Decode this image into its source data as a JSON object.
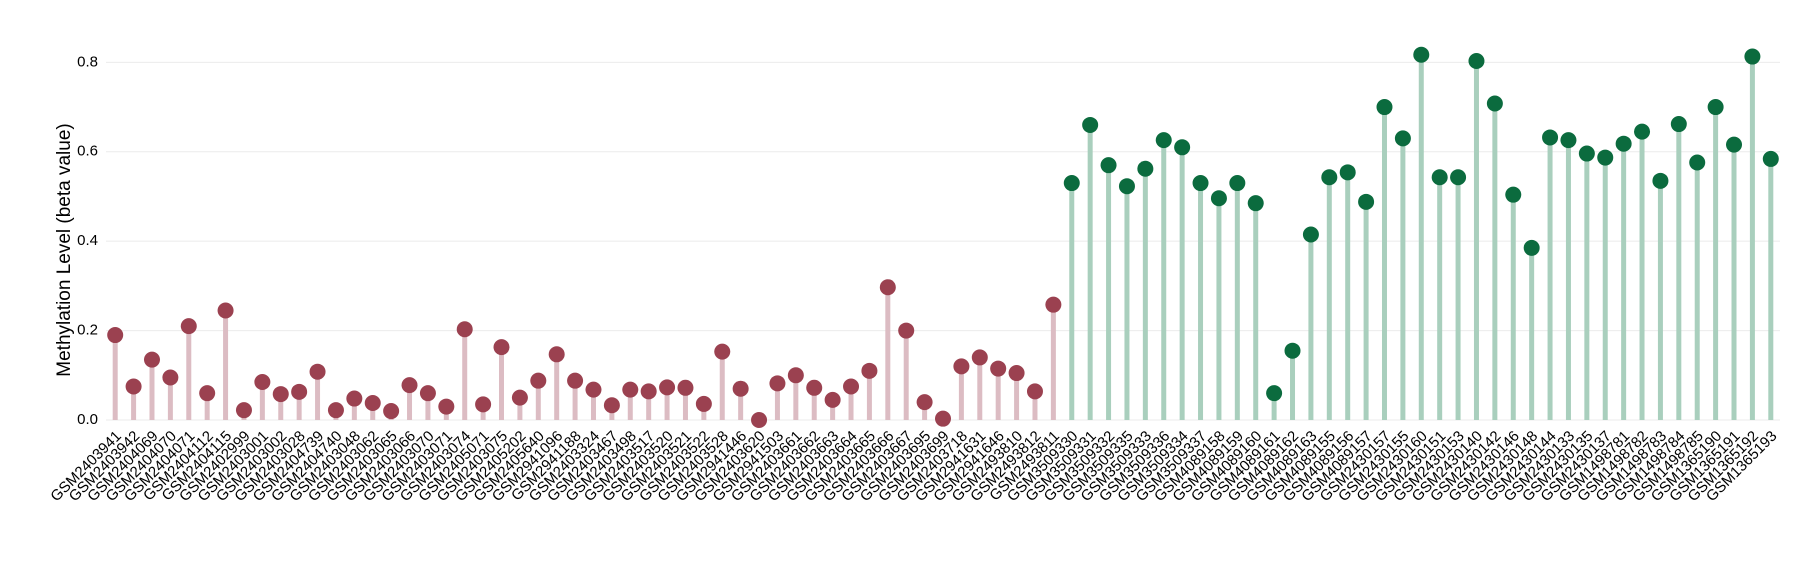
{
  "chart_data": {
    "type": "lollipop",
    "ylabel": "Methylation Level (beta value)",
    "ylim": [
      0,
      0.85
    ],
    "yticks": [
      {
        "value": 0,
        "label": "0.0"
      },
      0.2,
      0.4,
      0.6,
      0.8
    ],
    "grid": true,
    "series": [
      {
        "color": "#9b4150",
        "stem_color": "#dcbcc3",
        "categories": [
          "GSM2403941",
          "GSM2403942",
          "GSM2404069",
          "GSM2404070",
          "GSM2404071",
          "GSM2404112",
          "GSM2404115",
          "GSM2402999",
          "GSM2403001",
          "GSM2403002",
          "GSM2403028",
          "GSM2404739",
          "GSM2404740",
          "GSM2403048",
          "GSM2403062",
          "GSM2403065",
          "GSM2403066",
          "GSM2403070",
          "GSM2403071",
          "GSM2403074",
          "GSM2405071",
          "GSM2403075",
          "GSM2405202",
          "GSM2405640",
          "GSM2941096",
          "GSM2941188",
          "GSM2403324",
          "GSM2403467",
          "GSM2403498",
          "GSM2403517",
          "GSM2403520",
          "GSM2403521",
          "GSM2403522",
          "GSM2403528",
          "GSM2941446",
          "GSM2403620",
          "GSM2941503",
          "GSM2403661",
          "GSM2403662",
          "GSM2403663",
          "GSM2403664",
          "GSM2403665",
          "GSM2403666",
          "GSM2403667",
          "GSM2403695",
          "GSM2403699",
          "GSM2403718",
          "GSM2941631",
          "GSM2941646",
          "GSM2493810",
          "GSM2493812",
          "GSM2493811"
        ],
        "values": [
          0.19,
          0.075,
          0.135,
          0.095,
          0.21,
          0.06,
          0.245,
          0.022,
          0.085,
          0.058,
          0.063,
          0.108,
          0.022,
          0.048,
          0.038,
          0.02,
          0.078,
          0.06,
          0.03,
          0.203,
          0.035,
          0.163,
          0.05,
          0.088,
          0.147,
          0.088,
          0.068,
          0.033,
          0.068,
          0.064,
          0.073,
          0.072,
          0.036,
          0.153,
          0.07,
          0.0,
          0.082,
          0.1,
          0.072,
          0.045,
          0.075,
          0.11,
          0.297,
          0.2,
          0.04,
          0.003,
          0.12,
          0.14,
          0.115,
          0.105,
          0.064,
          0.258
        ]
      },
      {
        "color": "#0b6b3e",
        "stem_color": "#a9cfbd",
        "categories": [
          "GSM3509330",
          "GSM3509331",
          "GSM3509332",
          "GSM3509335",
          "GSM3509333",
          "GSM3509336",
          "GSM3509334",
          "GSM3509337",
          "GSM4089158",
          "GSM4089159",
          "GSM4089160",
          "GSM4089161",
          "GSM4089162",
          "GSM4089163",
          "GSM4089155",
          "GSM4089156",
          "GSM4089157",
          "GSM2430157",
          "GSM2430155",
          "GSM2430160",
          "GSM2430151",
          "GSM2430153",
          "GSM2430140",
          "GSM2430142",
          "GSM2430146",
          "GSM2430148",
          "GSM2430144",
          "GSM2430133",
          "GSM2430135",
          "GSM2430137",
          "GSM1498781",
          "GSM1498782",
          "GSM1498783",
          "GSM1498784",
          "GSM1498785",
          "GSM1365190",
          "GSM1365191",
          "GSM1365192",
          "GSM1365193"
        ],
        "values": [
          0.53,
          0.66,
          0.57,
          0.523,
          0.562,
          0.626,
          0.61,
          0.53,
          0.496,
          0.53,
          0.485,
          0.06,
          0.155,
          0.415,
          0.543,
          0.554,
          0.488,
          0.7,
          0.63,
          0.817,
          0.543,
          0.543,
          0.803,
          0.708,
          0.504,
          0.385,
          0.632,
          0.626,
          0.596,
          0.587,
          0.618,
          0.645,
          0.535,
          0.662,
          0.576,
          0.7,
          0.616,
          0.813,
          0.584
        ]
      }
    ]
  }
}
